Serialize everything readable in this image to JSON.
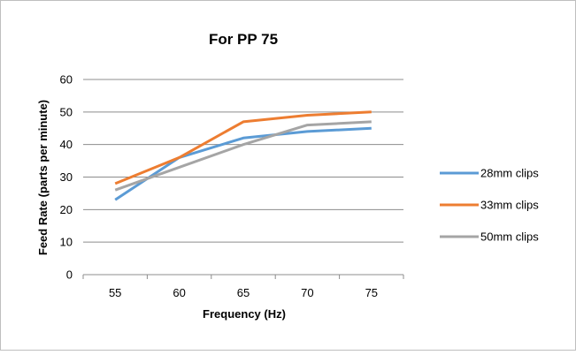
{
  "chart_data": {
    "type": "line",
    "title": "For PP 75",
    "xlabel": "Frequency (Hz)",
    "ylabel": "Feed Rate (parts per minute)",
    "categories": [
      "55",
      "60",
      "65",
      "70",
      "75"
    ],
    "ylim": [
      0,
      60
    ],
    "yticks": [
      "0",
      "10",
      "20",
      "30",
      "40",
      "50",
      "60"
    ],
    "grid": true,
    "legend_position": "right",
    "series": [
      {
        "name": "28mm clips",
        "color": "#5b9bd5",
        "values": [
          23,
          36,
          42,
          44,
          45
        ]
      },
      {
        "name": "33mm clips",
        "color": "#ed7d31",
        "values": [
          28,
          36,
          47,
          49,
          50
        ]
      },
      {
        "name": "50mm clips",
        "color": "#a5a5a5",
        "values": [
          26,
          33,
          40,
          46,
          47
        ]
      }
    ]
  }
}
